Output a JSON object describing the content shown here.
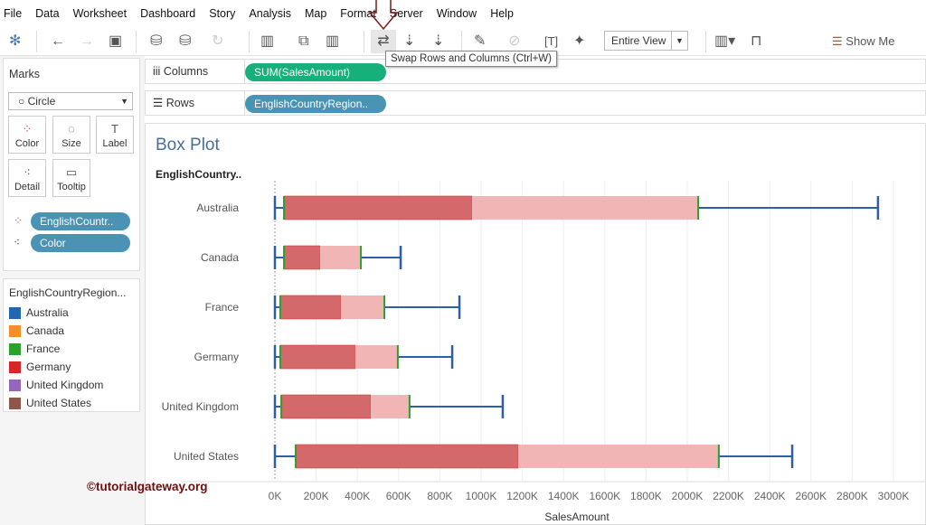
{
  "menu": [
    "File",
    "Data",
    "Worksheet",
    "Dashboard",
    "Story",
    "Analysis",
    "Map",
    "Format",
    "Server",
    "Window",
    "Help"
  ],
  "toolbar": {
    "tooltip": "Swap Rows and Columns (Ctrl+W)",
    "fit": "Entire View",
    "show_me": "Show Me"
  },
  "marks": {
    "title": "Marks",
    "mark_type": "Circle",
    "cards": [
      "Color",
      "Size",
      "Label",
      "Detail",
      "Tooltip"
    ],
    "pills": [
      "EnglishCountr..",
      "Color"
    ]
  },
  "legend": {
    "title": "EnglishCountryRegion...",
    "items": [
      {
        "label": "Australia",
        "color": "#2066b0"
      },
      {
        "label": "Canada",
        "color": "#f28e2b"
      },
      {
        "label": "France",
        "color": "#2ca02c"
      },
      {
        "label": "Germany",
        "color": "#d62728"
      },
      {
        "label": "United Kingdom",
        "color": "#9467bd"
      },
      {
        "label": "United States",
        "color": "#8c564b"
      }
    ]
  },
  "shelves": {
    "columns_label": "Columns",
    "columns_pill": "SUM(SalesAmount)",
    "rows_label": "Rows",
    "rows_pill": "EnglishCountryRegion.."
  },
  "sheet": {
    "title": "Box Plot",
    "row_header": "EnglishCountry.."
  },
  "watermark": "©tutorialgateway.org",
  "chart_data": {
    "type": "box",
    "xlabel": "SalesAmount",
    "xlim": [
      0,
      3000000
    ],
    "ticks": [
      "0K",
      "200K",
      "400K",
      "600K",
      "800K",
      "1000K",
      "1200K",
      "1400K",
      "1600K",
      "1800K",
      "2000K",
      "2200K",
      "2400K",
      "2600K",
      "2800K",
      "3000K"
    ],
    "categories": [
      "Australia",
      "Canada",
      "France",
      "Germany",
      "United Kingdom",
      "United States"
    ],
    "boxes": [
      {
        "min": 0,
        "q1": 44000,
        "median": 956000,
        "q3": 2053000,
        "max": 2925000
      },
      {
        "min": 0,
        "q1": 44000,
        "median": 219000,
        "q3": 417000,
        "max": 610000
      },
      {
        "min": 0,
        "q1": 26000,
        "median": 320000,
        "q3": 531000,
        "max": 895000
      },
      {
        "min": 0,
        "q1": 26000,
        "median": 390000,
        "q3": 596000,
        "max": 860000
      },
      {
        "min": 0,
        "q1": 31000,
        "median": 465000,
        "q3": 653000,
        "max": 1105000
      },
      {
        "min": 0,
        "q1": 101000,
        "median": 1180000,
        "q3": 2153000,
        "max": 2509000
      }
    ],
    "colors": {
      "lower": "#d3696b",
      "upper": "#f2b5b6",
      "whisker": "#2c5fa5",
      "hinge": "#2ca02c"
    }
  }
}
